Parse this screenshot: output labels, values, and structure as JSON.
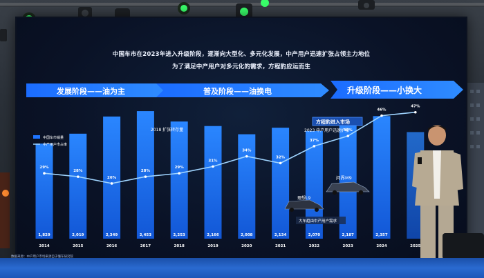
{
  "slide": {
    "headline_line1": "中国车市在2023年进入升级阶段，逐渐向大型化、多元化发展，中产用户迅速扩张占领主力地位",
    "headline_line2": "为了满足中产用户对多元化的需求，方程豹应运而生",
    "stages": [
      {
        "label": "发展阶段——油为主"
      },
      {
        "label": "普及阶段——油换电"
      },
      {
        "label": "升级阶段——小换大"
      }
    ],
    "annotations": {
      "stock": "2018 扩张转存量",
      "entry": "方程豹进入市场",
      "middle_class": "2023 中产用户迅速扩张",
      "suv_caption": "大车趋由中产用户需求",
      "car_left": "理想L9",
      "car_right": "问界M9"
    },
    "source_note": "数据来源：中产用户市场来源自于懂车研究院"
  },
  "chart_data": {
    "type": "bar",
    "title": "",
    "legend": [
      {
        "name": "中国车市销量"
      },
      {
        "name": "中产用户市占率"
      }
    ],
    "legend_position": "top-left",
    "categories": [
      "2014",
      "2015",
      "2016",
      "2017",
      "2018",
      "2019",
      "2020",
      "2021",
      "2022",
      "2023",
      "2024",
      "2025"
    ],
    "series": [
      {
        "name": "中国车市销量",
        "type": "bar",
        "values": [
          1829,
          2019,
          2349,
          2453,
          2253,
          2166,
          2008,
          2134,
          2070,
          2187,
          2357,
          2050
        ],
        "labels": [
          "1,829",
          "2,019",
          "2,349",
          "2,453",
          "2,253",
          "2,166",
          "2,008",
          "2,134",
          "2,070",
          "2,187",
          "2,357",
          ""
        ]
      },
      {
        "name": "中产用户市占率",
        "type": "line",
        "values": [
          29,
          28,
          26,
          28,
          29,
          31,
          34,
          32,
          37,
          40,
          46,
          47
        ],
        "labels": [
          "29%",
          "28%",
          "26%",
          "28%",
          "29%",
          "31%",
          "34%",
          "32%",
          "37%",
          "40%",
          "46%",
          "47%"
        ]
      }
    ],
    "bar_ylim": [
      0,
      2600
    ],
    "line_ylim": [
      15,
      50
    ],
    "grid": false,
    "colors": {
      "bar": "#1e74ff",
      "line": "#9fd4ff",
      "text": "#ffffff"
    }
  }
}
